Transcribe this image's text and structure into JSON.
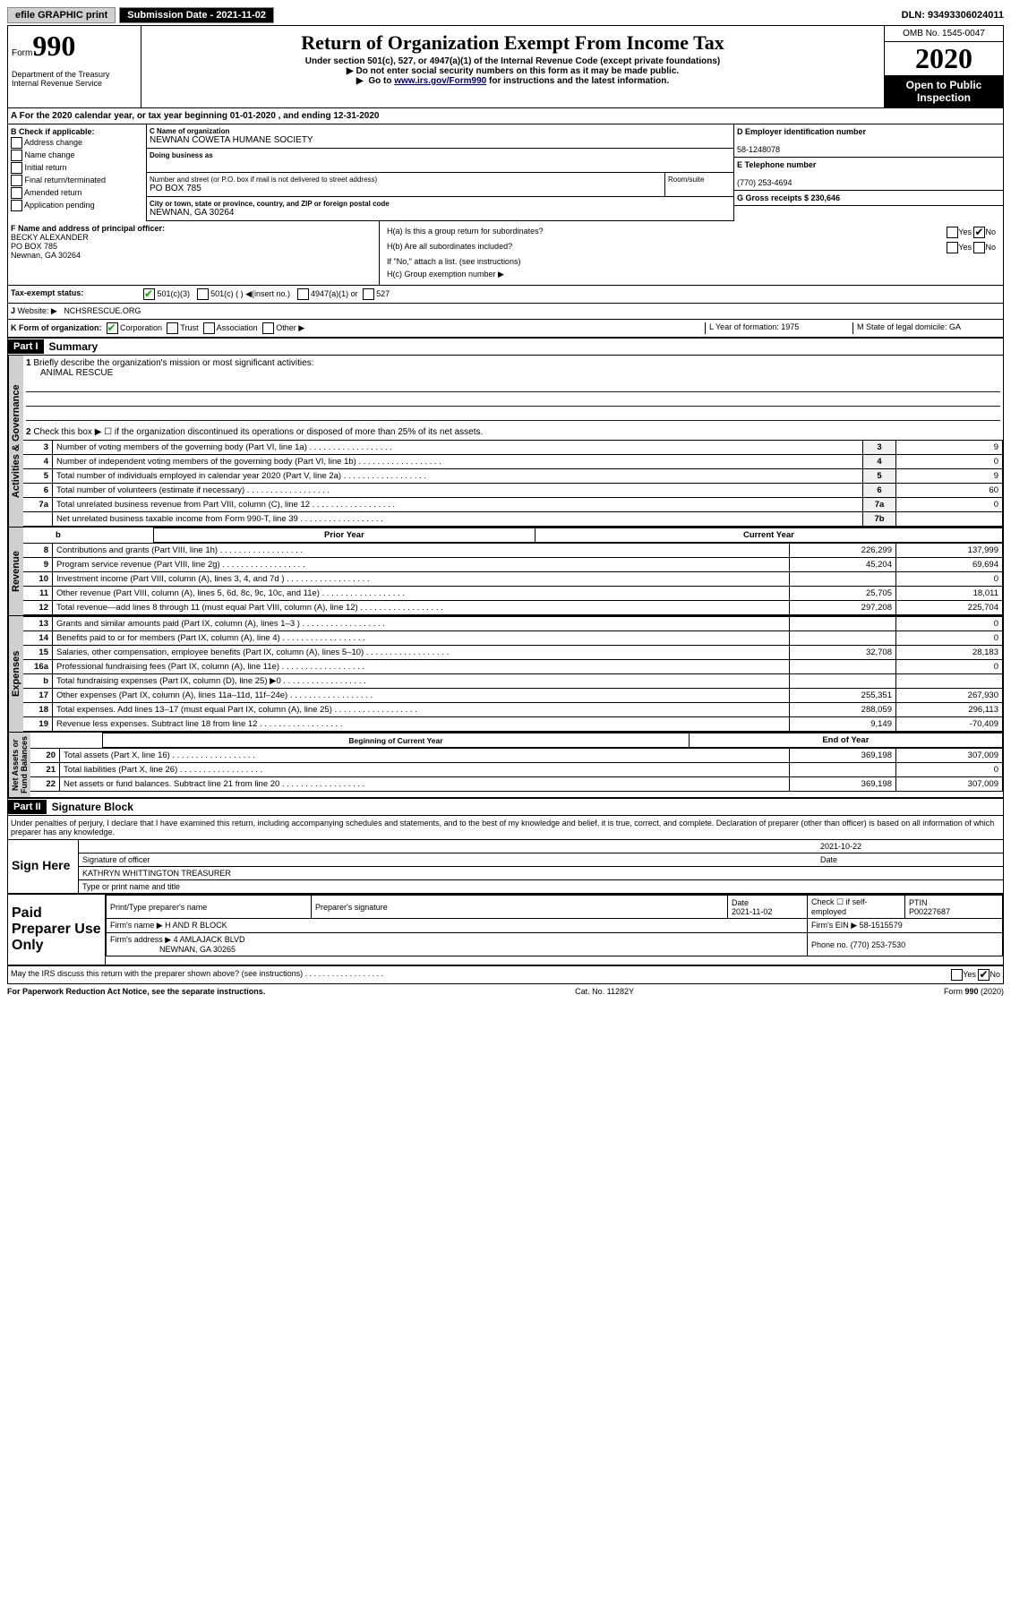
{
  "topbar": {
    "efile": "efile GRAPHIC print",
    "submission": "Submission Date - 2021-11-02",
    "dln": "DLN: 93493306024011"
  },
  "header": {
    "form_label": "Form",
    "form_num": "990",
    "title": "Return of Organization Exempt From Income Tax",
    "subtitle": "Under section 501(c), 527, or 4947(a)(1) of the Internal Revenue Code (except private foundations)",
    "note1": "Do not enter social security numbers on this form as it may be made public.",
    "note2_pre": "Go to ",
    "note2_link": "www.irs.gov/Form990",
    "note2_post": " for instructions and the latest information.",
    "dept": "Department of the Treasury\nInternal Revenue Service",
    "omb": "OMB No. 1545-0047",
    "year": "2020",
    "open": "Open to Public Inspection"
  },
  "period": "For the 2020 calendar year, or tax year beginning 01-01-2020   , and ending 12-31-2020",
  "b": {
    "lbl": "B Check if applicable:",
    "opts": [
      "Address change",
      "Name change",
      "Initial return",
      "Final return/terminated",
      "Amended return",
      "Application pending"
    ]
  },
  "c": {
    "name_lbl": "C Name of organization",
    "name": "NEWNAN COWETA HUMANE SOCIETY",
    "dba_lbl": "Doing business as",
    "street_lbl": "Number and street (or P.O. box if mail is not delivered to street address)",
    "street": "PO BOX 785",
    "room_lbl": "Room/suite",
    "city_lbl": "City or town, state or province, country, and ZIP or foreign postal code",
    "city": "NEWNAN, GA  30264"
  },
  "d": {
    "lbl": "D Employer identification number",
    "val": "58-1248078"
  },
  "e": {
    "lbl": "E Telephone number",
    "val": "(770) 253-4694"
  },
  "g": {
    "lbl": "G Gross receipts $ 230,646"
  },
  "f": {
    "lbl": "F  Name and address of principal officer:",
    "name": "BECKY ALEXANDER",
    "street": "PO BOX 785",
    "city": "Newnan, GA  30264"
  },
  "h": {
    "a": "H(a)  Is this a group return for subordinates?",
    "b": "H(b)  Are all subordinates included?",
    "b_note": "If \"No,\" attach a list. (see instructions)",
    "c": "H(c)  Group exemption number ▶"
  },
  "i": {
    "lbl": "Tax-exempt status:",
    "o1": "501(c)(3)",
    "o2": "501(c) (  ) ◀(insert no.)",
    "o3": "4947(a)(1) or",
    "o4": "527"
  },
  "j": {
    "lbl": "Website: ▶",
    "val": "NCHSRESCUE.ORG"
  },
  "k": {
    "lbl": "K Form of organization:",
    "opts": [
      "Corporation",
      "Trust",
      "Association",
      "Other ▶"
    ]
  },
  "l": {
    "lbl": "L Year of formation: 1975"
  },
  "m": {
    "lbl": "M State of legal domicile: GA"
  },
  "part1": {
    "hdr": "Part I",
    "title": "Summary"
  },
  "summary": {
    "l1": "Briefly describe the organization's mission or most significant activities:",
    "mission": "ANIMAL RESCUE",
    "l2": "Check this box ▶ ☐  if the organization discontinued its operations or disposed of more than 25% of its net assets.",
    "rows_ag": [
      {
        "n": "3",
        "d": "Number of voting members of the governing body (Part VI, line 1a)",
        "b": "3",
        "v": "9"
      },
      {
        "n": "4",
        "d": "Number of independent voting members of the governing body (Part VI, line 1b)",
        "b": "4",
        "v": "0"
      },
      {
        "n": "5",
        "d": "Total number of individuals employed in calendar year 2020 (Part V, line 2a)",
        "b": "5",
        "v": "9"
      },
      {
        "n": "6",
        "d": "Total number of volunteers (estimate if necessary)",
        "b": "6",
        "v": "60"
      },
      {
        "n": "7a",
        "d": "Total unrelated business revenue from Part VIII, column (C), line 12",
        "b": "7a",
        "v": "0"
      },
      {
        "n": "",
        "d": "Net unrelated business taxable income from Form 990-T, line 39",
        "b": "7b",
        "v": ""
      }
    ],
    "col_hdr": {
      "prior": "Prior Year",
      "curr": "Current Year"
    },
    "rev": [
      {
        "n": "8",
        "d": "Contributions and grants (Part VIII, line 1h)",
        "p": "226,299",
        "c": "137,999"
      },
      {
        "n": "9",
        "d": "Program service revenue (Part VIII, line 2g)",
        "p": "45,204",
        "c": "69,694"
      },
      {
        "n": "10",
        "d": "Investment income (Part VIII, column (A), lines 3, 4, and 7d )",
        "p": "",
        "c": "0"
      },
      {
        "n": "11",
        "d": "Other revenue (Part VIII, column (A), lines 5, 6d, 8c, 9c, 10c, and 11e)",
        "p": "25,705",
        "c": "18,011"
      },
      {
        "n": "12",
        "d": "Total revenue—add lines 8 through 11 (must equal Part VIII, column (A), line 12)",
        "p": "297,208",
        "c": "225,704"
      }
    ],
    "exp": [
      {
        "n": "13",
        "d": "Grants and similar amounts paid (Part IX, column (A), lines 1–3 )",
        "p": "",
        "c": "0"
      },
      {
        "n": "14",
        "d": "Benefits paid to or for members (Part IX, column (A), line 4)",
        "p": "",
        "c": "0"
      },
      {
        "n": "15",
        "d": "Salaries, other compensation, employee benefits (Part IX, column (A), lines 5–10)",
        "p": "32,708",
        "c": "28,183"
      },
      {
        "n": "16a",
        "d": "Professional fundraising fees (Part IX, column (A), line 11e)",
        "p": "",
        "c": "0"
      },
      {
        "n": "b",
        "d": "Total fundraising expenses (Part IX, column (D), line 25) ▶0",
        "p": "",
        "c": ""
      },
      {
        "n": "17",
        "d": "Other expenses (Part IX, column (A), lines 11a–11d, 11f–24e)",
        "p": "255,351",
        "c": "267,930"
      },
      {
        "n": "18",
        "d": "Total expenses. Add lines 13–17 (must equal Part IX, column (A), line 25)",
        "p": "288,059",
        "c": "296,113"
      },
      {
        "n": "19",
        "d": "Revenue less expenses. Subtract line 18 from line 12",
        "p": "9,149",
        "c": "-70,409"
      }
    ],
    "na_hdr": {
      "beg": "Beginning of Current Year",
      "end": "End of Year"
    },
    "na": [
      {
        "n": "20",
        "d": "Total assets (Part X, line 16)",
        "p": "369,198",
        "c": "307,009"
      },
      {
        "n": "21",
        "d": "Total liabilities (Part X, line 26)",
        "p": "",
        "c": "0"
      },
      {
        "n": "22",
        "d": "Net assets or fund balances. Subtract line 21 from line 20",
        "p": "369,198",
        "c": "307,009"
      }
    ]
  },
  "part2": {
    "hdr": "Part II",
    "title": "Signature Block"
  },
  "sig": {
    "decl": "Under penalties of perjury, I declare that I have examined this return, including accompanying schedules and statements, and to the best of my knowledge and belief, it is true, correct, and complete. Declaration of preparer (other than officer) is based on all information of which preparer has any knowledge.",
    "here": "Sign Here",
    "date": "2021-10-22",
    "sig_lbl": "Signature of officer",
    "date_lbl": "Date",
    "name": "KATHRYN WHITTINGTON  TREASURER",
    "name_lbl": "Type or print name and title"
  },
  "paid": {
    "title": "Paid Preparer Use Only",
    "h1": "Print/Type preparer's name",
    "h2": "Preparer's signature",
    "h3": "Date",
    "h3v": "2021-11-02",
    "h4": "Check ☐ if self-employed",
    "h5": "PTIN",
    "h5v": "P00227687",
    "firm_lbl": "Firm's name    ▶",
    "firm": "H AND R BLOCK",
    "ein_lbl": "Firm's EIN ▶",
    "ein": "58-1515579",
    "addr_lbl": "Firm's address ▶",
    "addr": "4 AMLAJACK BLVD",
    "addr2": "NEWNAN, GA  30265",
    "phone_lbl": "Phone no.",
    "phone": "(770) 253-7530"
  },
  "discuss": "May the IRS discuss this return with the preparer shown above? (see instructions)",
  "footer": {
    "left": "For Paperwork Reduction Act Notice, see the separate instructions.",
    "mid": "Cat. No. 11282Y",
    "right": "Form 990 (2020)"
  }
}
